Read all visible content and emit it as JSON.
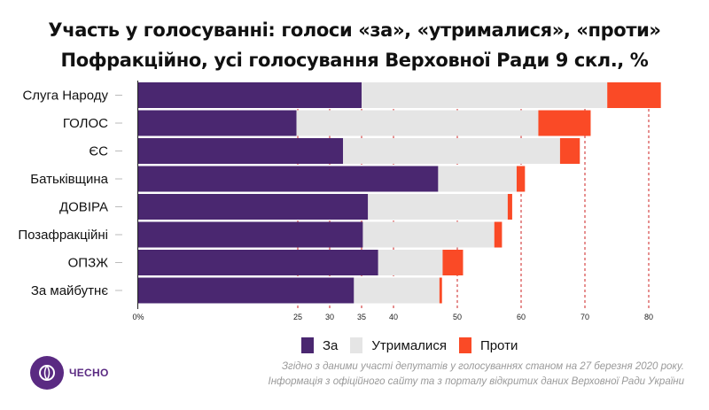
{
  "chart_data": {
    "type": "bar",
    "orientation": "horizontal",
    "stacked": true,
    "title": "Участь у голосуванні: голоси «за», «утрималися», «проти»",
    "subtitle": "Пофракційно, усі голосування Верховної Ради 9 скл., %",
    "categories": [
      "Слуга Народу",
      "ГОЛОС",
      "ЄС",
      "Батьківщина",
      "ДОВІРА",
      "Позафракційні",
      "ОПЗЖ",
      "За майбутнє"
    ],
    "series": [
      {
        "name": "За",
        "color": "#4a2770",
        "values": [
          35.0,
          24.8,
          32.1,
          47.0,
          36.0,
          35.2,
          37.6,
          33.8
        ]
      },
      {
        "name": "Утрималися",
        "color": "#e5e5e5",
        "values": [
          38.5,
          37.9,
          34.0,
          12.3,
          21.9,
          20.6,
          10.1,
          13.4
        ]
      },
      {
        "name": "Проти",
        "color": "#fa4a26",
        "values": [
          8.4,
          8.2,
          3.1,
          1.3,
          0.7,
          1.2,
          3.2,
          0.4
        ]
      }
    ],
    "xaxis": {
      "min": 0,
      "max": 85,
      "ticks": [
        0,
        25,
        30,
        35,
        40,
        50,
        60,
        70,
        80
      ],
      "tick_labels": [
        "0%",
        "25",
        "30",
        "35",
        "40",
        "50",
        "60",
        "70",
        "80"
      ]
    },
    "legend": [
      "За",
      "Утрималися",
      "Проти"
    ]
  },
  "logo": {
    "text": "ЧЕСНО"
  },
  "source": {
    "line1": "Згідно з даними участі депутатів у голосуваннях станом на 27 березня 2020 року.",
    "line2": "Інформація з офіційного сайту та з порталу відкритих даних Верховної Ради України"
  }
}
